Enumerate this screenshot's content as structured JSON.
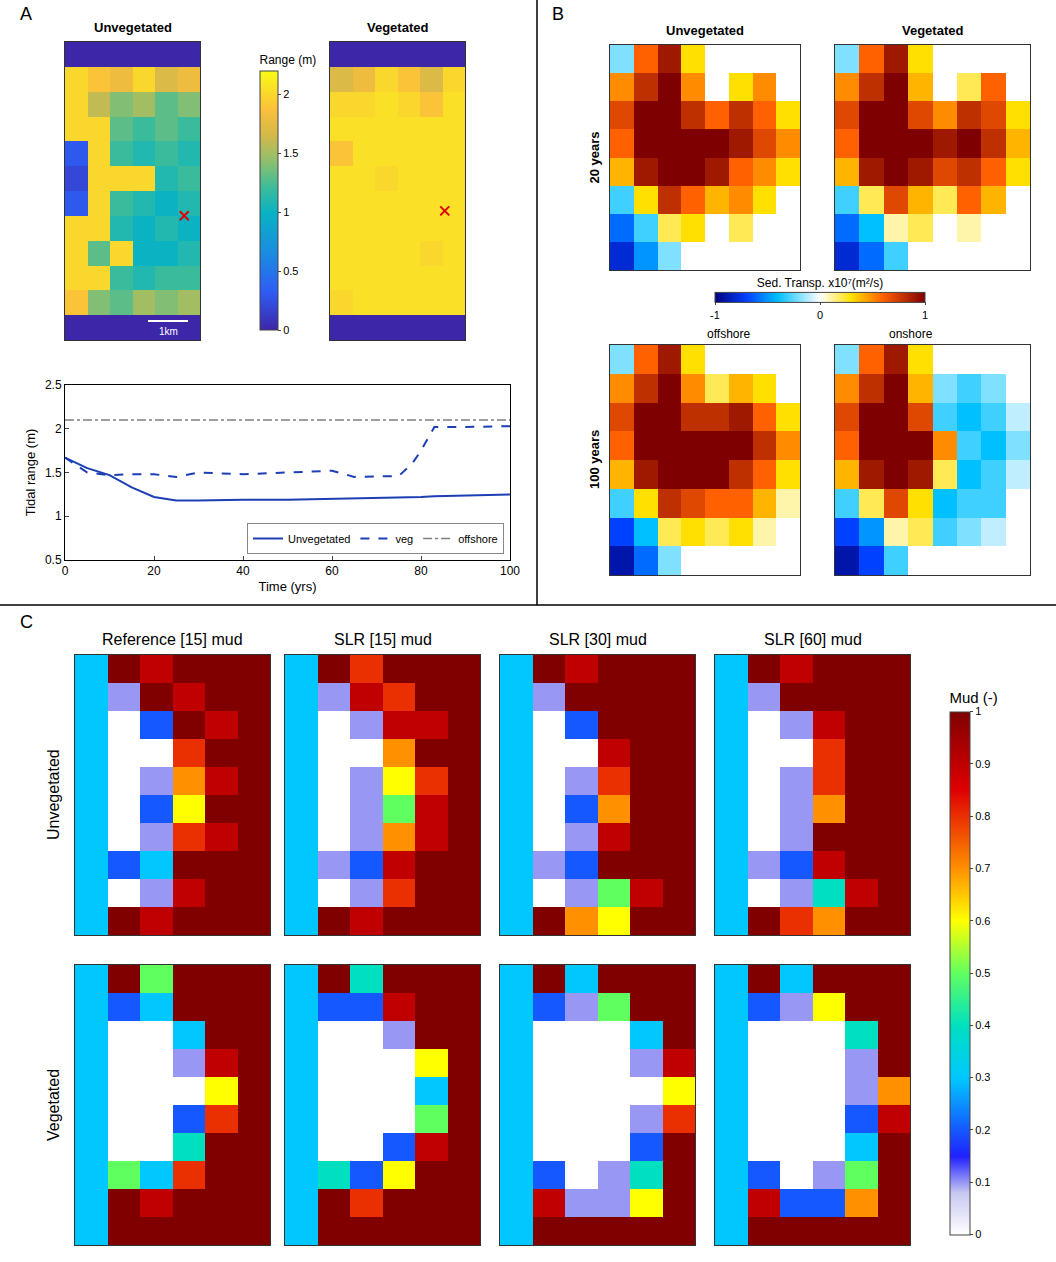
{
  "chart_data": [
    {
      "type": "heatmap",
      "panel_label": "A",
      "title": "Unvegetated",
      "tick_labels": false,
      "colorbar": {
        "title": "Range (m)",
        "range": [
          0,
          2.2
        ],
        "ticks": [
          0,
          0.5,
          1,
          1.5,
          2
        ]
      },
      "station": {
        "x": 4.8,
        "y": 6.5
      },
      "scale_bar": "1km",
      "cells": [
        [
          0,
          0,
          0,
          0,
          0,
          0
        ],
        [
          2.0,
          1.9,
          1.8,
          2.0,
          1.7,
          1.8
        ],
        [
          2.0,
          1.6,
          1.4,
          1.5,
          1.3,
          1.4
        ],
        [
          2.0,
          2.0,
          1.3,
          1.2,
          1.3,
          1.2
        ],
        [
          0.3,
          2.0,
          1.2,
          1.1,
          1.2,
          1.1
        ],
        [
          0.2,
          2.0,
          2.0,
          2.0,
          1.1,
          1.2
        ],
        [
          0.3,
          2.0,
          1.2,
          1.1,
          1.0,
          1.1
        ],
        [
          2.0,
          2.0,
          1.1,
          1.0,
          1.1,
          1.0
        ],
        [
          2.0,
          1.3,
          2.0,
          1.0,
          1.0,
          1.1
        ],
        [
          2.0,
          2.0,
          1.2,
          1.1,
          1.2,
          1.2
        ],
        [
          1.9,
          1.4,
          1.3,
          1.5,
          1.4,
          1.5
        ],
        [
          0,
          0,
          0,
          0,
          0,
          0
        ]
      ]
    },
    {
      "type": "heatmap",
      "title": "Vegetated",
      "tick_labels": false,
      "station": {
        "x": 4.6,
        "y": 6.3
      },
      "cells": [
        [
          0,
          0,
          0,
          0,
          0,
          0
        ],
        [
          1.7,
          1.8,
          2.0,
          1.9,
          1.7,
          2.0
        ],
        [
          2.0,
          2.0,
          2.05,
          2.0,
          1.9,
          2.05
        ],
        [
          2.05,
          2.05,
          2.05,
          2.05,
          2.05,
          2.05
        ],
        [
          1.9,
          2.05,
          2.05,
          2.05,
          2.05,
          2.05
        ],
        [
          2.05,
          2.05,
          2.0,
          2.05,
          2.05,
          2.05
        ],
        [
          2.05,
          2.05,
          2.05,
          2.05,
          2.05,
          2.05
        ],
        [
          2.05,
          2.05,
          2.05,
          2.05,
          2.05,
          2.05
        ],
        [
          2.05,
          2.05,
          2.05,
          2.05,
          2.0,
          2.05
        ],
        [
          2.05,
          2.05,
          2.05,
          2.05,
          2.05,
          2.05
        ],
        [
          2.0,
          2.05,
          2.05,
          2.05,
          2.05,
          2.05
        ],
        [
          0,
          0,
          0,
          0,
          0,
          0
        ]
      ]
    },
    {
      "type": "line",
      "xlabel": "Time (yrs)",
      "ylabel": "Tidal range (m)",
      "x": [
        0,
        5,
        10,
        15,
        20,
        25,
        30,
        40,
        50,
        60,
        65,
        75,
        78,
        80,
        83,
        90,
        100
      ],
      "xlim": [
        0,
        100
      ],
      "xticks": [
        0,
        20,
        40,
        60,
        80,
        100
      ],
      "ylim": [
        0.5,
        2.5
      ],
      "yticks": [
        0.5,
        1,
        1.5,
        2,
        2.5
      ],
      "grid": false,
      "legend": "lower right",
      "series": [
        {
          "name": "Unvegetated",
          "color": "#1c3fb5",
          "line_style": "solid",
          "values": [
            1.67,
            1.55,
            1.47,
            1.33,
            1.22,
            1.18,
            1.18,
            1.19,
            1.19,
            1.2,
            1.2,
            1.21,
            1.22,
            1.22,
            1.23,
            1.24,
            1.25
          ]
        },
        {
          "name": "veg",
          "color": "#1c3fb5",
          "line_style": "dashed",
          "values": [
            1.67,
            1.5,
            1.47,
            1.48,
            1.48,
            1.45,
            1.5,
            1.48,
            1.5,
            1.52,
            1.45,
            1.46,
            1.6,
            1.75,
            2.02,
            2.02,
            2.03
          ]
        },
        {
          "name": "offshore",
          "color": "#7f7f7f",
          "line_style": "dashdot",
          "values": [
            2.1,
            2.1,
            2.1,
            2.1,
            2.1,
            2.1,
            2.1,
            2.1,
            2.1,
            2.1,
            2.1,
            2.1,
            2.1,
            2.1,
            2.1,
            2.1,
            2.1
          ]
        }
      ]
    },
    {
      "type": "heatmap",
      "panel_label": "B",
      "title": "Unvegetated",
      "row_label": "20 years",
      "tick_labels": false,
      "colorbar": {
        "title": "Sed. Transp. x10⁷(m²/s)",
        "range": [
          -1,
          1
        ],
        "ticks": [
          -1,
          0,
          1
        ],
        "end_labels": [
          "offshore",
          "onshore"
        ]
      },
      "cells": [
        [
          -0.2,
          0.6,
          0.9,
          0.3,
          0,
          0,
          0,
          0
        ],
        [
          0.5,
          0.8,
          1,
          0.5,
          0,
          0.3,
          0.5,
          0
        ],
        [
          0.7,
          1,
          1,
          0.8,
          0.6,
          0.8,
          0.6,
          0.3
        ],
        [
          0.6,
          1,
          1,
          1,
          1,
          0.9,
          0.7,
          0.5
        ],
        [
          0.4,
          0.9,
          1,
          1,
          0.9,
          0.6,
          0.5,
          0.3
        ],
        [
          -0.3,
          0.3,
          0.8,
          0.6,
          0.4,
          0.5,
          0.3,
          0
        ],
        [
          -0.6,
          -0.3,
          0.2,
          0.3,
          0,
          0.2,
          0,
          0
        ],
        [
          -0.8,
          -0.5,
          -0.2,
          0,
          0,
          0,
          0,
          0
        ]
      ]
    },
    {
      "type": "heatmap",
      "title": "Vegetated",
      "tick_labels": false,
      "cells": [
        [
          -0.2,
          0.6,
          0.9,
          0.3,
          0,
          0,
          0,
          0
        ],
        [
          0.5,
          0.8,
          1,
          0.4,
          0,
          0.2,
          0.6,
          0
        ],
        [
          0.7,
          1,
          1,
          0.7,
          0.5,
          0.8,
          0.7,
          0.3
        ],
        [
          0.6,
          1,
          1,
          1,
          0.9,
          1,
          0.8,
          0.4
        ],
        [
          0.4,
          0.9,
          1,
          0.9,
          0.7,
          0.8,
          0.6,
          0.3
        ],
        [
          -0.3,
          0.2,
          0.7,
          0.4,
          0.2,
          0.6,
          0.4,
          0
        ],
        [
          -0.6,
          -0.4,
          0.1,
          0.2,
          0,
          0.1,
          0,
          0
        ],
        [
          -0.8,
          -0.6,
          -0.3,
          0,
          0,
          0,
          0,
          0
        ]
      ]
    },
    {
      "type": "heatmap",
      "row_label": "100 years",
      "tick_labels": false,
      "cells": [
        [
          -0.2,
          0.6,
          0.9,
          0.3,
          0,
          0,
          0,
          0
        ],
        [
          0.5,
          0.8,
          1,
          0.5,
          0.2,
          0.4,
          0.3,
          0
        ],
        [
          0.7,
          1,
          1,
          0.8,
          0.8,
          0.9,
          0.6,
          0.3
        ],
        [
          0.6,
          1,
          1,
          1,
          1,
          1,
          0.8,
          0.5
        ],
        [
          0.4,
          0.9,
          1,
          1,
          1,
          0.8,
          0.6,
          0.3
        ],
        [
          -0.3,
          0.3,
          0.8,
          0.7,
          0.6,
          0.6,
          0.4,
          0.1
        ],
        [
          -0.7,
          -0.4,
          0.2,
          0.3,
          0.2,
          0.3,
          0.1,
          0
        ],
        [
          -0.9,
          -0.6,
          -0.2,
          0,
          0,
          0,
          0,
          0
        ]
      ]
    },
    {
      "type": "heatmap",
      "tick_labels": false,
      "cells": [
        [
          -0.2,
          0.6,
          0.9,
          0.3,
          0,
          0,
          0,
          0
        ],
        [
          0.5,
          0.8,
          1,
          0.4,
          -0.2,
          -0.3,
          -0.2,
          0
        ],
        [
          0.7,
          1,
          1,
          0.7,
          -0.3,
          -0.4,
          -0.3,
          -0.1
        ],
        [
          0.6,
          1,
          1,
          1,
          0.5,
          -0.3,
          -0.4,
          -0.2
        ],
        [
          0.4,
          0.9,
          1,
          0.9,
          0.2,
          -0.4,
          -0.3,
          -0.1
        ],
        [
          -0.3,
          0.2,
          0.7,
          0.3,
          -0.4,
          -0.3,
          -0.3,
          0
        ],
        [
          -0.7,
          -0.5,
          0.1,
          0.2,
          -0.3,
          -0.2,
          -0.1,
          0
        ],
        [
          -0.9,
          -0.7,
          -0.3,
          0,
          0,
          0,
          0,
          0
        ]
      ]
    },
    {
      "type": "heatmap",
      "panel_label": "C",
      "title": "Reference [15] mud",
      "row_label": "Unvegetated",
      "tick_labels": false,
      "colorbar": {
        "title": "Mud (-)",
        "range": [
          0,
          1
        ],
        "ticks": [
          0,
          0.1,
          0.2,
          0.3,
          0.4,
          0.5,
          0.6,
          0.7,
          0.8,
          0.9,
          1
        ]
      },
      "cells": [
        [
          0.3,
          1,
          0.9,
          1,
          1,
          1
        ],
        [
          0.3,
          0.1,
          1,
          0.9,
          1,
          1
        ],
        [
          0.3,
          0,
          0.2,
          1,
          0.9,
          1
        ],
        [
          0.3,
          0,
          0,
          0.8,
          1,
          1
        ],
        [
          0.3,
          0,
          0.1,
          0.7,
          0.9,
          1
        ],
        [
          0.3,
          0,
          0.2,
          0.6,
          1,
          1
        ],
        [
          0.3,
          0,
          0.1,
          0.8,
          0.9,
          1
        ],
        [
          0.3,
          0.2,
          0.3,
          1,
          1,
          1
        ],
        [
          0.3,
          0,
          0.1,
          0.9,
          1,
          1
        ],
        [
          0.3,
          1,
          0.9,
          1,
          1,
          1
        ]
      ]
    },
    {
      "type": "heatmap",
      "title": "SLR [15] mud",
      "tick_labels": false,
      "cells": [
        [
          0.3,
          1,
          0.8,
          1,
          1,
          1
        ],
        [
          0.3,
          0.1,
          0.9,
          0.8,
          1,
          1
        ],
        [
          0.3,
          0,
          0.1,
          0.9,
          0.9,
          1
        ],
        [
          0.3,
          0,
          0,
          0.7,
          1,
          1
        ],
        [
          0.3,
          0,
          0.1,
          0.6,
          0.8,
          1
        ],
        [
          0.3,
          0,
          0.1,
          0.5,
          0.9,
          1
        ],
        [
          0.3,
          0,
          0.1,
          0.7,
          0.9,
          1
        ],
        [
          0.3,
          0.1,
          0.2,
          0.9,
          1,
          1
        ],
        [
          0.3,
          0,
          0.1,
          0.8,
          1,
          1
        ],
        [
          0.3,
          1,
          0.9,
          1,
          1,
          1
        ]
      ]
    },
    {
      "type": "heatmap",
      "title": "SLR [30] mud",
      "tick_labels": false,
      "cells": [
        [
          0.3,
          1,
          0.9,
          1,
          1,
          1
        ],
        [
          0.3,
          0.1,
          1,
          1,
          1,
          1
        ],
        [
          0.3,
          0,
          0.2,
          1,
          1,
          1
        ],
        [
          0.3,
          0,
          0,
          0.9,
          1,
          1
        ],
        [
          0.3,
          0,
          0.1,
          0.8,
          1,
          1
        ],
        [
          0.3,
          0,
          0.2,
          0.7,
          1,
          1
        ],
        [
          0.3,
          0,
          0.1,
          0.9,
          1,
          1
        ],
        [
          0.3,
          0.1,
          0.2,
          1,
          1,
          1
        ],
        [
          0.3,
          0,
          0.1,
          0.5,
          0.9,
          1
        ],
        [
          0.3,
          1,
          0.7,
          0.6,
          1,
          1
        ]
      ]
    },
    {
      "type": "heatmap",
      "title": "SLR [60] mud",
      "tick_labels": false,
      "cells": [
        [
          0.3,
          1,
          0.9,
          1,
          1,
          1
        ],
        [
          0.3,
          0.1,
          1,
          1,
          1,
          1
        ],
        [
          0.3,
          0,
          0.1,
          0.9,
          1,
          1
        ],
        [
          0.3,
          0,
          0,
          0.8,
          1,
          1
        ],
        [
          0.3,
          0,
          0.1,
          0.8,
          1,
          1
        ],
        [
          0.3,
          0,
          0.1,
          0.7,
          1,
          1
        ],
        [
          0.3,
          0,
          0.1,
          1,
          1,
          1
        ],
        [
          0.3,
          0.1,
          0.2,
          0.9,
          1,
          1
        ],
        [
          0.3,
          0,
          0.1,
          0.4,
          0.9,
          1
        ],
        [
          0.3,
          1,
          0.8,
          0.7,
          1,
          1
        ]
      ]
    },
    {
      "type": "heatmap",
      "row_label": "Vegetated",
      "tick_labels": false,
      "cells": [
        [
          0.3,
          1,
          0.5,
          1,
          1,
          1
        ],
        [
          0.3,
          0.2,
          0.3,
          1,
          1,
          1
        ],
        [
          0.3,
          0,
          0,
          0.3,
          1,
          1
        ],
        [
          0.3,
          0,
          0,
          0.1,
          0.9,
          1
        ],
        [
          0.3,
          0,
          0,
          0,
          0.6,
          1
        ],
        [
          0.3,
          0,
          0,
          0.2,
          0.8,
          1
        ],
        [
          0.3,
          0,
          0,
          0.4,
          1,
          1
        ],
        [
          0.3,
          0.5,
          0.3,
          0.8,
          1,
          1
        ],
        [
          0.3,
          1,
          0.9,
          1,
          1,
          1
        ],
        [
          0.3,
          1,
          1,
          1,
          1,
          1
        ]
      ]
    },
    {
      "type": "heatmap",
      "tick_labels": false,
      "cells": [
        [
          0.3,
          1,
          0.4,
          1,
          1,
          1
        ],
        [
          0.3,
          0.2,
          0.2,
          0.9,
          1,
          1
        ],
        [
          0.3,
          0,
          0,
          0.1,
          1,
          1
        ],
        [
          0.3,
          0,
          0,
          0,
          0.6,
          1
        ],
        [
          0.3,
          0,
          0,
          0,
          0.3,
          1
        ],
        [
          0.3,
          0,
          0,
          0,
          0.5,
          1
        ],
        [
          0.3,
          0,
          0,
          0.2,
          0.9,
          1
        ],
        [
          0.3,
          0.4,
          0.2,
          0.6,
          1,
          1
        ],
        [
          0.3,
          1,
          0.8,
          1,
          1,
          1
        ],
        [
          0.3,
          1,
          1,
          1,
          1,
          1
        ]
      ]
    },
    {
      "type": "heatmap",
      "tick_labels": false,
      "cells": [
        [
          0.3,
          1,
          0.3,
          1,
          1,
          1
        ],
        [
          0.3,
          0.2,
          0.1,
          0.5,
          1,
          1
        ],
        [
          0.3,
          0,
          0,
          0,
          0.3,
          1
        ],
        [
          0.3,
          0,
          0,
          0,
          0.1,
          0.9
        ],
        [
          0.3,
          0,
          0,
          0,
          0,
          0.6
        ],
        [
          0.3,
          0,
          0,
          0,
          0.1,
          0.8
        ],
        [
          0.3,
          0,
          0,
          0,
          0.2,
          1
        ],
        [
          0.3,
          0.2,
          0,
          0.1,
          0.4,
          1
        ],
        [
          0.3,
          0.9,
          0.1,
          0.1,
          0.6,
          1
        ],
        [
          0.3,
          1,
          1,
          1,
          1,
          1
        ]
      ]
    },
    {
      "type": "heatmap",
      "tick_labels": false,
      "cells": [
        [
          0.3,
          1,
          0.3,
          1,
          1,
          1
        ],
        [
          0.3,
          0.2,
          0.1,
          0.6,
          1,
          1
        ],
        [
          0.3,
          0,
          0,
          0,
          0.4,
          1
        ],
        [
          0.3,
          0,
          0,
          0,
          0.1,
          1
        ],
        [
          0.3,
          0,
          0,
          0,
          0.1,
          0.7
        ],
        [
          0.3,
          0,
          0,
          0,
          0.2,
          0.9
        ],
        [
          0.3,
          0,
          0,
          0,
          0.3,
          1
        ],
        [
          0.3,
          0.2,
          0,
          0.1,
          0.5,
          1
        ],
        [
          0.3,
          0.9,
          0.2,
          0.2,
          0.7,
          1
        ],
        [
          0.3,
          1,
          1,
          1,
          1,
          1
        ]
      ]
    }
  ]
}
